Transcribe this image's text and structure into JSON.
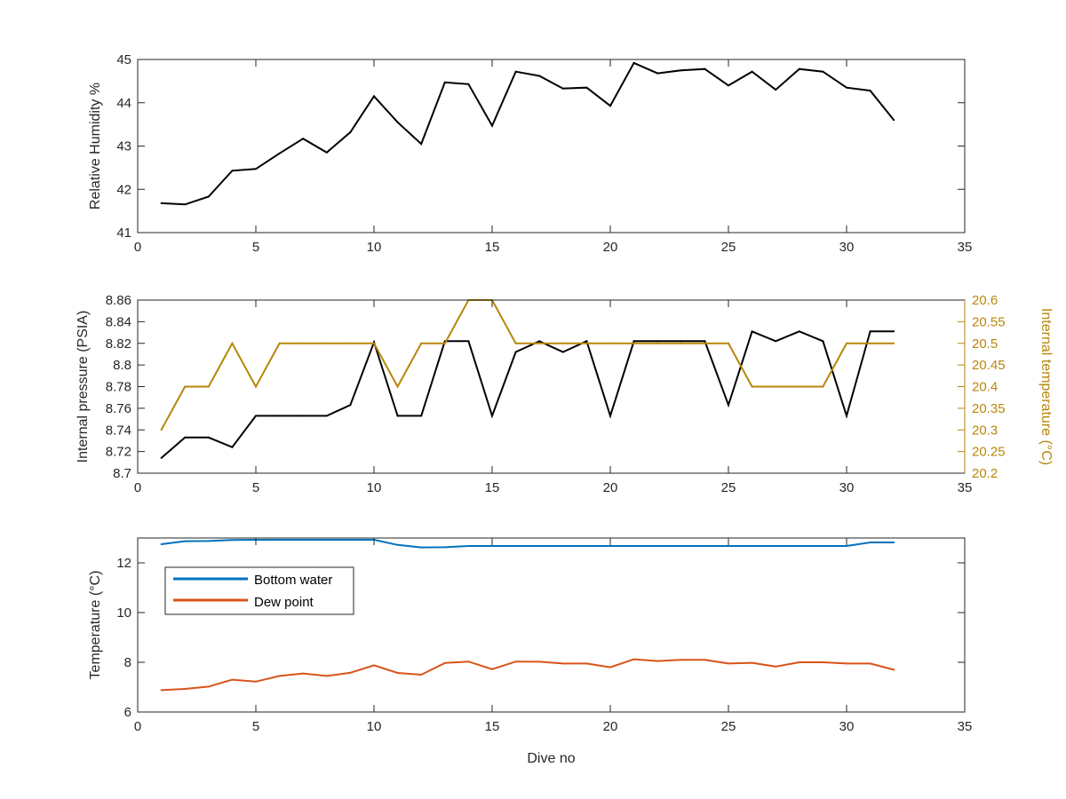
{
  "chart_data": [
    {
      "type": "line",
      "ylabel": "Relative Humidity %",
      "xlim": [
        0,
        35
      ],
      "ylim": [
        41,
        45
      ],
      "xticks": [
        "0",
        "5",
        "10",
        "15",
        "20",
        "25",
        "30",
        "35"
      ],
      "yticks": [
        "41",
        "42",
        "43",
        "44",
        "45"
      ],
      "grid": false,
      "series": [
        {
          "color": "#000000",
          "x": [
            1,
            2,
            3,
            4,
            5,
            6,
            7,
            8,
            9,
            10,
            11,
            12,
            13,
            14,
            15,
            16,
            17,
            18,
            19,
            20,
            21,
            22,
            23,
            24,
            25,
            26,
            27,
            28,
            29,
            30,
            31,
            32
          ],
          "values": [
            41.68,
            41.65,
            41.83,
            42.43,
            42.47,
            42.83,
            43.17,
            42.85,
            43.32,
            44.15,
            43.55,
            43.05,
            44.47,
            44.43,
            43.47,
            44.72,
            44.62,
            44.33,
            44.35,
            43.93,
            44.92,
            44.68,
            44.75,
            44.78,
            44.4,
            44.72,
            44.3,
            44.78,
            44.72,
            44.35,
            44.28,
            43.6
          ]
        }
      ]
    },
    {
      "type": "line",
      "ylabel": "Internal pressure (PSIA)",
      "y2label": "Internal temperature (°C)",
      "xlim": [
        0,
        35
      ],
      "ylim": [
        8.7,
        8.86
      ],
      "y2lim": [
        20.2,
        20.6
      ],
      "xticks": [
        "0",
        "5",
        "10",
        "15",
        "20",
        "25",
        "30",
        "35"
      ],
      "yticks": [
        "8.7",
        "8.72",
        "8.74",
        "8.76",
        "8.78",
        "8.8",
        "8.82",
        "8.84",
        "8.86"
      ],
      "y2ticks": [
        "20.2",
        "20.25",
        "20.3",
        "20.35",
        "20.4",
        "20.45",
        "20.5",
        "20.55",
        "20.6"
      ],
      "grid": false,
      "series": [
        {
          "axis": "left",
          "color": "#000000",
          "x": [
            1,
            2,
            3,
            4,
            5,
            6,
            7,
            8,
            9,
            10,
            11,
            12,
            13,
            14,
            15,
            16,
            17,
            18,
            19,
            20,
            21,
            22,
            23,
            24,
            25,
            26,
            27,
            28,
            29,
            30,
            31,
            32
          ],
          "values": [
            8.714,
            8.733,
            8.733,
            8.724,
            8.753,
            8.753,
            8.753,
            8.753,
            8.763,
            8.821,
            8.753,
            8.753,
            8.822,
            8.822,
            8.753,
            8.812,
            8.822,
            8.812,
            8.822,
            8.753,
            8.822,
            8.822,
            8.822,
            8.822,
            8.763,
            8.831,
            8.822,
            8.831,
            8.822,
            8.753,
            8.831,
            8.831
          ]
        },
        {
          "axis": "right",
          "color": "#B8860B",
          "x": [
            1,
            2,
            3,
            4,
            5,
            6,
            7,
            8,
            9,
            10,
            11,
            12,
            13,
            14,
            15,
            16,
            17,
            18,
            19,
            20,
            21,
            22,
            23,
            24,
            25,
            26,
            27,
            28,
            29,
            30,
            31,
            32
          ],
          "values": [
            20.3,
            20.4,
            20.4,
            20.5,
            20.4,
            20.5,
            20.5,
            20.5,
            20.5,
            20.5,
            20.4,
            20.5,
            20.5,
            20.6,
            20.6,
            20.5,
            20.5,
            20.5,
            20.5,
            20.5,
            20.5,
            20.5,
            20.5,
            20.5,
            20.5,
            20.4,
            20.4,
            20.4,
            20.4,
            20.5,
            20.5,
            20.5
          ]
        }
      ]
    },
    {
      "type": "line",
      "ylabel": "Temperature (°C)",
      "xlabel": "Dive no",
      "xlim": [
        0,
        35
      ],
      "ylim": [
        6,
        13
      ],
      "xticks": [
        "0",
        "5",
        "10",
        "15",
        "20",
        "25",
        "30",
        "35"
      ],
      "yticks": [
        "6",
        "8",
        "10",
        "12"
      ],
      "grid": false,
      "legend": "top-left",
      "series": [
        {
          "name": "Bottom water",
          "color": "#0072BD",
          "x": [
            1,
            2,
            3,
            4,
            5,
            6,
            7,
            8,
            9,
            10,
            11,
            12,
            13,
            14,
            15,
            16,
            17,
            18,
            19,
            20,
            21,
            22,
            23,
            24,
            25,
            26,
            27,
            28,
            29,
            30,
            31,
            32
          ],
          "values": [
            12.75,
            12.87,
            12.88,
            12.92,
            12.93,
            12.93,
            12.93,
            12.93,
            12.93,
            12.93,
            12.72,
            12.62,
            12.63,
            12.68,
            12.68,
            12.68,
            12.68,
            12.68,
            12.68,
            12.68,
            12.68,
            12.68,
            12.68,
            12.68,
            12.68,
            12.68,
            12.68,
            12.68,
            12.68,
            12.68,
            12.82,
            12.82
          ]
        },
        {
          "name": "Dew point",
          "color": "#D95319",
          "x": [
            1,
            2,
            3,
            4,
            5,
            6,
            7,
            8,
            9,
            10,
            11,
            12,
            13,
            14,
            15,
            16,
            17,
            18,
            19,
            20,
            21,
            22,
            23,
            24,
            25,
            26,
            27,
            28,
            29,
            30,
            31,
            32
          ],
          "values": [
            6.88,
            6.93,
            7.02,
            7.3,
            7.22,
            7.45,
            7.55,
            7.45,
            7.58,
            7.88,
            7.57,
            7.5,
            7.97,
            8.03,
            7.72,
            8.03,
            8.02,
            7.95,
            7.95,
            7.8,
            8.12,
            8.05,
            8.1,
            8.1,
            7.95,
            7.98,
            7.83,
            8.0,
            8.0,
            7.95,
            7.95,
            7.7
          ]
        }
      ]
    }
  ]
}
